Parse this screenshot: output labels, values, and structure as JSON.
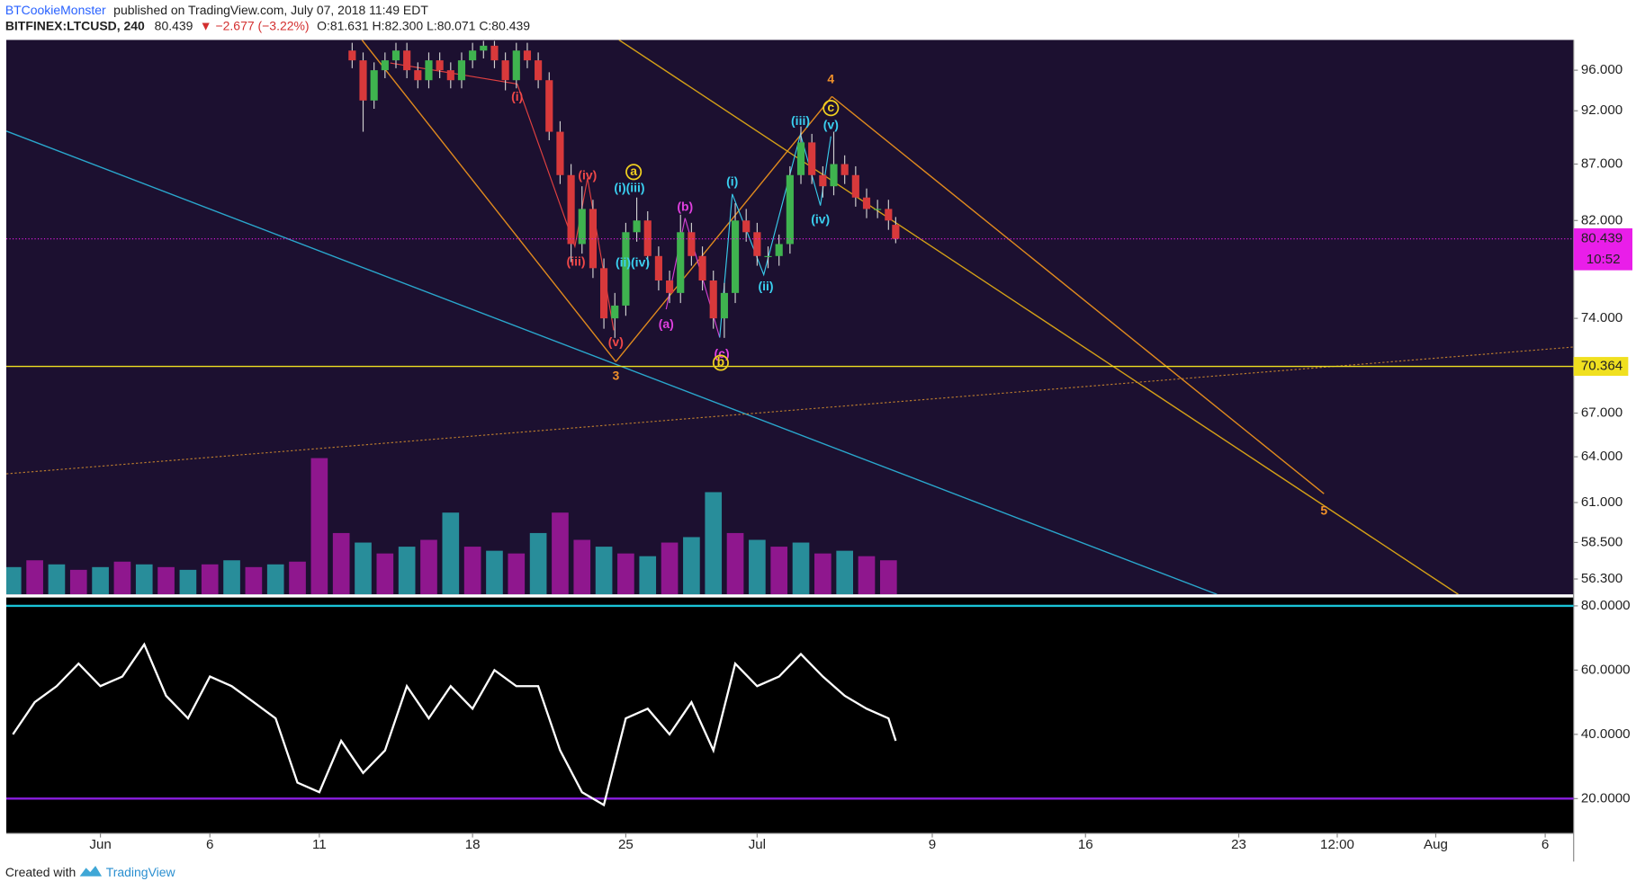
{
  "header": {
    "author": "BTCookieMonster",
    "published": "published on TradingView.com, July 07, 2018 11:49 EDT",
    "symbol": "BITFINEX:LTCUSD, 240",
    "last": "80.439",
    "change": "▼ −2.677 (−3.22%)",
    "quote": "O:81.631 H:82.300 L:80.071 C:80.439"
  },
  "footer": {
    "created": "Created with",
    "brand": "TradingView"
  },
  "chart_data": [
    {
      "type": "candlestick",
      "log_scale": true,
      "up_color": "#3fb34f",
      "down_color": "#d8393b",
      "wick_color": "#cfcfcf",
      "x": [
        163.5,
        164,
        164.5,
        165,
        165.5,
        166,
        166.5,
        167,
        167.5,
        168,
        168.5,
        169,
        169.5,
        170,
        170.5,
        171,
        171.5,
        172,
        172.5,
        173,
        173.5,
        174,
        174.5,
        175,
        175.5,
        176,
        176.5,
        177,
        177.5,
        178,
        178.5,
        179,
        179.5,
        180,
        180.5,
        181,
        181.5,
        182,
        182.5,
        183,
        183.5,
        184,
        184.5,
        185,
        185.5,
        186,
        186.5,
        187,
        187.5,
        188,
        188.33
      ],
      "open": [
        98,
        97,
        93,
        96,
        97,
        98,
        96,
        95,
        97,
        96,
        95,
        97,
        98,
        98.5,
        97,
        95,
        98,
        97,
        95,
        90,
        86,
        80,
        83,
        78,
        74,
        75,
        81,
        82,
        79,
        77,
        76,
        81,
        79,
        77,
        74,
        76,
        82,
        81,
        79,
        79,
        80,
        86,
        89,
        86,
        85,
        87,
        86,
        84,
        83,
        83,
        81.631
      ],
      "high": [
        98.8,
        97.8,
        96.8,
        97.8,
        98.8,
        98.8,
        96.8,
        97.8,
        97.8,
        96.8,
        97.8,
        98.8,
        99,
        99,
        97.8,
        98.8,
        98.8,
        97.8,
        95.8,
        91,
        87,
        85,
        83.8,
        78.8,
        76,
        81.8,
        84,
        82.8,
        79.8,
        77.8,
        82.5,
        81.8,
        79.8,
        77.8,
        76.8,
        83.5,
        83,
        81.8,
        79.8,
        80.8,
        86.8,
        90.5,
        89.8,
        86.8,
        90,
        87.8,
        86.8,
        84.8,
        83.8,
        83.8,
        82.3
      ],
      "low": [
        96.2,
        90,
        92.2,
        95.2,
        96.2,
        95.2,
        94.2,
        94.2,
        95.2,
        94.2,
        94.2,
        96.2,
        97.2,
        96.2,
        94,
        94.2,
        96.2,
        94.2,
        89.2,
        85.2,
        78.5,
        79.2,
        77.2,
        73.2,
        72.5,
        74.2,
        80.2,
        78.2,
        76.2,
        75.2,
        75.2,
        78.2,
        76.2,
        73.2,
        72.5,
        75.2,
        80.2,
        78.2,
        78,
        78.2,
        79.2,
        85.2,
        85.2,
        84,
        84.2,
        85.2,
        83.2,
        82.2,
        82.2,
        81.2,
        80.071
      ],
      "close": [
        97,
        93,
        96,
        97,
        98,
        96,
        95,
        97,
        96,
        95,
        97,
        98,
        98.5,
        97,
        95,
        98,
        97,
        95,
        90,
        86,
        80,
        83,
        78,
        74,
        75,
        81,
        82,
        79,
        77,
        76,
        81,
        79,
        77,
        74,
        76,
        82,
        81,
        79,
        79,
        80,
        86,
        89,
        86,
        85,
        87,
        86,
        84,
        83,
        83,
        82,
        80.439
      ],
      "ylim": [
        55.4,
        99.1
      ],
      "yticks": [
        {
          "value": 96,
          "label": "96.000"
        },
        {
          "value": 92,
          "label": "92.000"
        },
        {
          "value": 87,
          "label": "87.000"
        },
        {
          "value": 82,
          "label": "82.000"
        },
        {
          "value": 74,
          "label": "74.000"
        },
        {
          "value": 67,
          "label": "67.000"
        },
        {
          "value": 64,
          "label": "64.000"
        },
        {
          "value": 61,
          "label": "61.000"
        },
        {
          "value": 58.5,
          "label": "58.500"
        },
        {
          "value": 56.3,
          "label": "56.300"
        }
      ],
      "xlim": [
        147.7,
        219.3
      ],
      "xticks": [
        {
          "value": 152,
          "label": "Jun"
        },
        {
          "value": 157,
          "label": "6"
        },
        {
          "value": 162,
          "label": "11"
        },
        {
          "value": 169,
          "label": "18"
        },
        {
          "value": 176,
          "label": "25"
        },
        {
          "value": 182,
          "label": "Jul"
        },
        {
          "value": 190,
          "label": "9"
        },
        {
          "value": 197,
          "label": "16"
        },
        {
          "value": 204,
          "label": "23"
        },
        {
          "value": 208.5,
          "label": "12:00"
        },
        {
          "value": 213,
          "label": "Aug"
        },
        {
          "value": 218,
          "label": "6"
        }
      ],
      "last_price": {
        "value": 80.439,
        "label": "80.439",
        "countdown": "10:52",
        "color": "#e91ee9"
      },
      "price_lines": [
        {
          "value": 70.364,
          "label": "70.364",
          "color": "#f0e020"
        }
      ],
      "volume": {
        "x": [
          148,
          149,
          150,
          151,
          152,
          153,
          154,
          155,
          156,
          157,
          158,
          159,
          160,
          161,
          162,
          163,
          164,
          165,
          166,
          167,
          168,
          169,
          170,
          171,
          172,
          173,
          174,
          175,
          176,
          177,
          178,
          179,
          180,
          181,
          182,
          183,
          184,
          185,
          186,
          187,
          188
        ],
        "values": [
          20,
          25,
          22,
          18,
          20,
          24,
          22,
          20,
          18,
          22,
          25,
          20,
          22,
          24,
          100,
          45,
          38,
          30,
          35,
          40,
          60,
          35,
          32,
          30,
          45,
          60,
          40,
          35,
          30,
          28,
          38,
          42,
          75,
          45,
          40,
          35,
          38,
          30,
          32,
          28,
          25
        ],
        "colors": [
          "#2aa3ad",
          "#a3199f",
          "#2aa3ad",
          "#a3199f",
          "#2aa3ad",
          "#a3199f",
          "#2aa3ad",
          "#a3199f",
          "#2aa3ad",
          "#a3199f",
          "#2aa3ad",
          "#a3199f",
          "#2aa3ad",
          "#a3199f",
          "#a3199f",
          "#a3199f",
          "#2aa3ad",
          "#a3199f",
          "#2aa3ad",
          "#a3199f",
          "#2aa3ad",
          "#a3199f",
          "#2aa3ad",
          "#a3199f",
          "#2aa3ad",
          "#a3199f",
          "#a3199f",
          "#2aa3ad",
          "#a3199f",
          "#2aa3ad",
          "#a3199f",
          "#2aa3ad",
          "#2aa3ad",
          "#a3199f",
          "#2aa3ad",
          "#a3199f",
          "#2aa3ad",
          "#a3199f",
          "#2aa3ad",
          "#a3199f",
          "#a3199f"
        ]
      },
      "wave_labels": [
        {
          "text": "(i)",
          "color": "#f04848"
        },
        {
          "text": "(iv)",
          "color": "#f04848"
        },
        {
          "text": "(iii)",
          "color": "#f04848"
        },
        {
          "text": "(v)",
          "color": "#f04848"
        },
        {
          "text": "3",
          "color": "#f0902a"
        },
        {
          "text": "(i)(iii)",
          "color": "#3ad0f0"
        },
        {
          "text": "(ii)(iv)",
          "color": "#3ad0f0"
        },
        {
          "text": "a",
          "color": "#f0d020",
          "circled": true
        },
        {
          "text": "(b)",
          "color": "#e040e0"
        },
        {
          "text": "(a)",
          "color": "#e040e0"
        },
        {
          "text": "(c)",
          "color": "#e040e0"
        },
        {
          "text": "b",
          "color": "#f0d020",
          "circled": true
        },
        {
          "text": "(i)",
          "color": "#3ad0f0"
        },
        {
          "text": "(ii)",
          "color": "#3ad0f0"
        },
        {
          "text": "(iii)",
          "color": "#3ad0f0"
        },
        {
          "text": "(iv)",
          "color": "#3ad0f0"
        },
        {
          "text": "(v)",
          "color": "#3ad0f0"
        },
        {
          "text": "c",
          "color": "#f0d020",
          "circled": true
        },
        {
          "text": "4",
          "color": "#f0902a"
        },
        {
          "text": "5",
          "color": "#f0902a"
        }
      ]
    },
    {
      "type": "line",
      "color": "#ffffff",
      "x": [
        148,
        149,
        150,
        151,
        152,
        153,
        154,
        155,
        156,
        157,
        158,
        159,
        160,
        161,
        162,
        163,
        164,
        165,
        166,
        167,
        168,
        169,
        170,
        171,
        172,
        173,
        174,
        175,
        176,
        177,
        178,
        179,
        180,
        181,
        182,
        183,
        184,
        185,
        186,
        187,
        188,
        188.33
      ],
      "values": [
        40,
        50,
        55,
        62,
        55,
        58,
        68,
        52,
        45,
        58,
        55,
        50,
        45,
        25,
        22,
        38,
        28,
        35,
        55,
        45,
        55,
        48,
        60,
        55,
        55,
        35,
        22,
        18,
        45,
        48,
        40,
        50,
        35,
        62,
        55,
        58,
        65,
        58,
        52,
        48,
        45,
        38
      ],
      "ylim": [
        9.2,
        82.6
      ],
      "yticks": [
        {
          "value": 80,
          "label": "80.0000"
        },
        {
          "value": 60,
          "label": "60.0000"
        },
        {
          "value": 40,
          "label": "40.0000"
        },
        {
          "value": 20,
          "label": "20.0000"
        }
      ],
      "bands": [
        {
          "value": 80,
          "color": "#19c3d6"
        },
        {
          "value": 20,
          "color": "#8a1ee0"
        }
      ]
    }
  ]
}
